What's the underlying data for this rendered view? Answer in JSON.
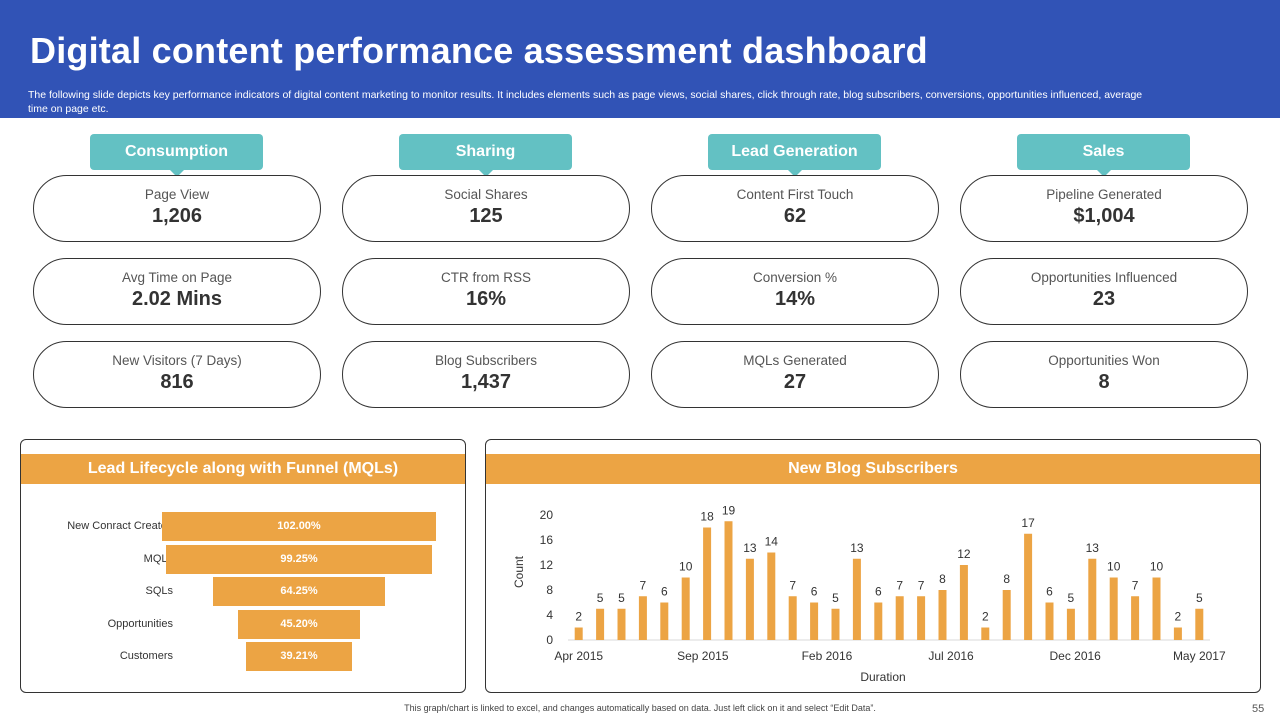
{
  "header": {
    "title": "Digital content performance assessment dashboard",
    "subtitle": "The following slide depicts key performance indicators of digital content marketing to monitor results. It includes elements such as page views, social shares, click through rate, blog subscribers, conversions, opportunities influenced, average time on page etc."
  },
  "categories": [
    {
      "name": "Consumption",
      "kpis": [
        {
          "label": "Page View",
          "value": "1,206"
        },
        {
          "label": "Avg Time  on Page",
          "value": "2.02 Mins"
        },
        {
          "label": "New Visitors (7 Days)",
          "value": "816"
        }
      ]
    },
    {
      "name": "Sharing",
      "kpis": [
        {
          "label": "Social Shares",
          "value": "125"
        },
        {
          "label": "CTR from RSS",
          "value": "16%"
        },
        {
          "label": "Blog Subscribers",
          "value": "1,437"
        }
      ]
    },
    {
      "name": "Lead Generation",
      "kpis": [
        {
          "label": "Content First Touch",
          "value": "62"
        },
        {
          "label": "Conversion  %",
          "value": "14%"
        },
        {
          "label": "MQLs Generated",
          "value": "27"
        }
      ]
    },
    {
      "name": "Sales",
      "kpis": [
        {
          "label": "Pipeline Generated",
          "value": "$1,004"
        },
        {
          "label": "Opportunities Influenced",
          "value": "23"
        },
        {
          "label": "Opportunities Won",
          "value": "8"
        }
      ]
    }
  ],
  "colors": {
    "header": "#3153b6",
    "tab": "#63c1c3",
    "accent": "#eca444"
  },
  "chart_data": [
    {
      "type": "bar",
      "orientation": "horizontal-funnel",
      "title": "Lead Lifecycle along with Funnel (MQLs)",
      "categories": [
        "New Conract Created",
        "MQLs",
        "SQLs",
        "Opportunities",
        "Customers"
      ],
      "values": [
        102.0,
        99.25,
        64.25,
        45.2,
        39.21
      ],
      "value_labels": [
        "102.00%",
        "99.25%",
        "64.25%",
        "45.20%",
        "39.21%"
      ]
    },
    {
      "type": "bar",
      "title": "New Blog Subscribers",
      "xlabel": "Duration",
      "ylabel": "Count",
      "ylim": [
        0,
        20
      ],
      "yticks": [
        "0",
        "4",
        "8",
        "12",
        "16",
        "20"
      ],
      "xtick_labels": [
        "Apr 2015",
        "Sep 2015",
        "Feb 2016",
        "Jul 2016",
        "Dec 2016",
        "May 2017"
      ],
      "values": [
        2,
        5,
        5,
        7,
        6,
        10,
        18,
        19,
        13,
        14,
        7,
        6,
        5,
        13,
        6,
        7,
        7,
        8,
        12,
        2,
        8,
        17,
        6,
        5,
        13,
        10,
        7,
        10,
        2,
        5
      ]
    }
  ],
  "footer": {
    "note": "This graph/chart is linked to excel, and changes automatically based on data. Just left click on it and select “Edit Data”.",
    "page_number": "55"
  }
}
